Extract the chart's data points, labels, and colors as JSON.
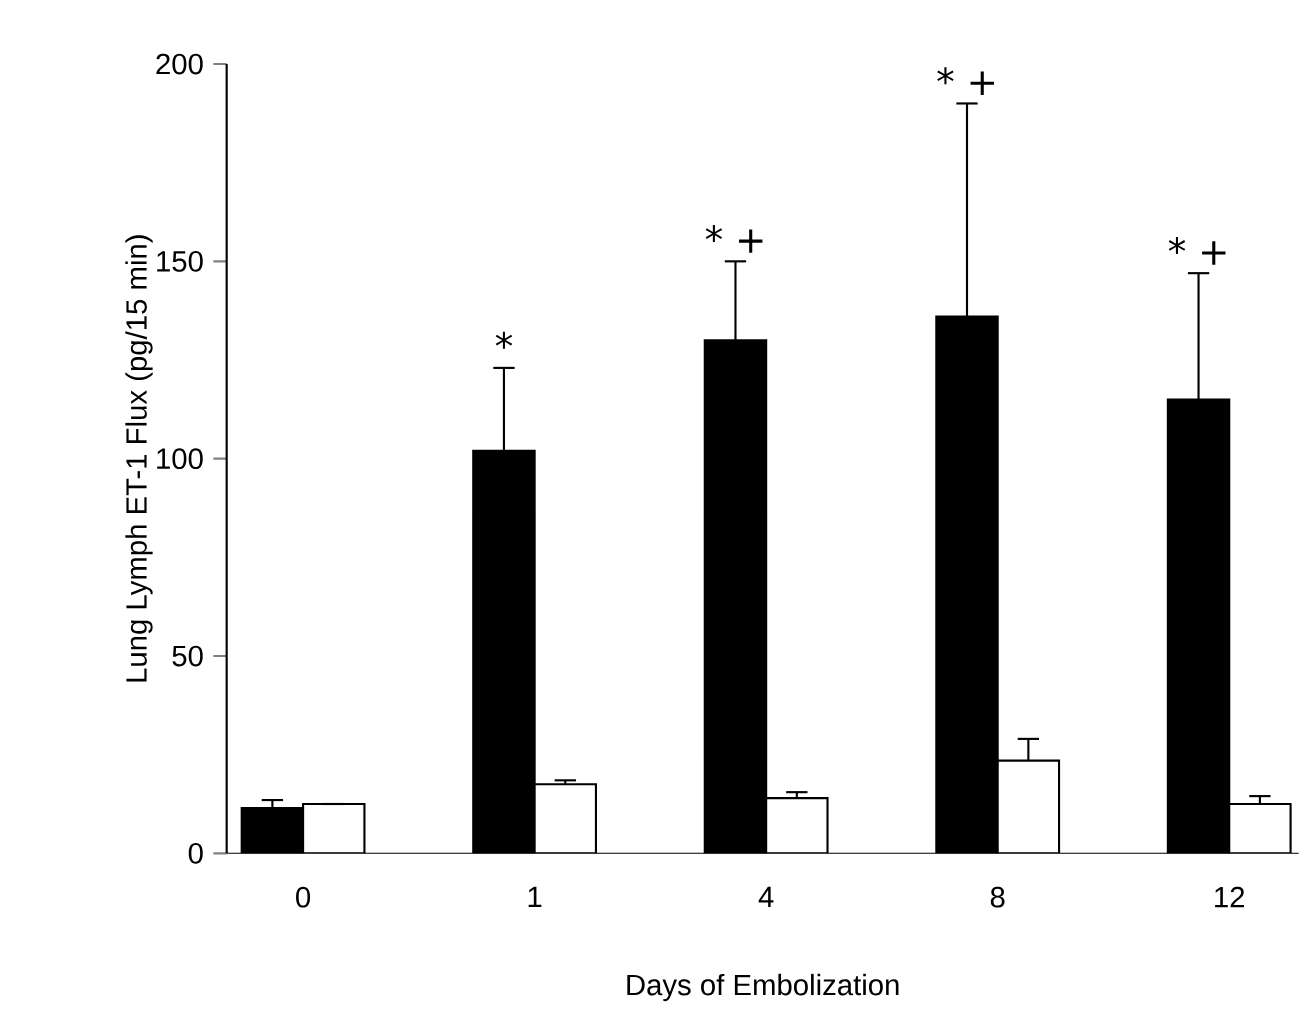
{
  "chart_data": {
    "type": "bar",
    "xlabel": "Days of Embolization",
    "ylabel": "Lung Lymph ET-1 Flux (pg/15 min)",
    "categories": [
      "0",
      "1",
      "4",
      "8",
      "12"
    ],
    "series": [
      {
        "color": "#000000",
        "values": [
          11.5,
          102,
          130,
          136,
          115
        ],
        "errors": [
          2,
          21,
          20,
          54,
          32
        ]
      },
      {
        "color": "#ffffff",
        "values": [
          12.5,
          17.5,
          14,
          23.5,
          12.5
        ],
        "errors": [
          null,
          1,
          1.5,
          5.5,
          2
        ]
      }
    ],
    "ylim": [
      0,
      200
    ],
    "yticks": [
      0,
      50,
      100,
      150,
      200
    ],
    "annotations": [
      "*",
      "* +",
      "* +",
      "* +"
    ],
    "grid": false,
    "legend": false
  }
}
